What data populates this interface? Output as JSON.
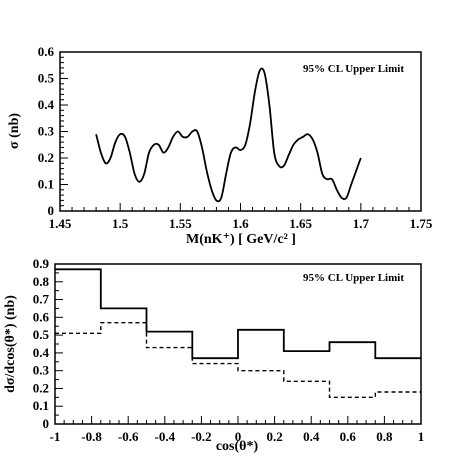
{
  "chart_data": [
    {
      "type": "line",
      "annotation": "95% CL Upper Limit",
      "xlabel": "M(nK⁺) [ GeV/c² ]",
      "ylabel": "σ (nb)",
      "xlim": [
        1.45,
        1.75
      ],
      "ylim": [
        0,
        0.6
      ],
      "xticks": [
        "1.45",
        "1.5",
        "1.55",
        "1.6",
        "1.65",
        "1.7",
        "1.75"
      ],
      "yticks": [
        "0",
        "0.1",
        "0.2",
        "0.3",
        "0.4",
        "0.5",
        "0.6"
      ],
      "x": [
        1.48,
        1.484,
        1.488,
        1.492,
        1.496,
        1.5,
        1.504,
        1.508,
        1.512,
        1.516,
        1.52,
        1.524,
        1.528,
        1.532,
        1.536,
        1.54,
        1.544,
        1.548,
        1.552,
        1.556,
        1.56,
        1.564,
        1.568,
        1.572,
        1.576,
        1.58,
        1.584,
        1.588,
        1.592,
        1.596,
        1.6,
        1.604,
        1.608,
        1.612,
        1.616,
        1.62,
        1.624,
        1.628,
        1.632,
        1.636,
        1.64,
        1.644,
        1.648,
        1.652,
        1.656,
        1.66,
        1.664,
        1.668,
        1.672,
        1.676,
        1.68,
        1.684,
        1.688,
        1.692,
        1.696,
        1.7
      ],
      "y": [
        0.29,
        0.22,
        0.18,
        0.2,
        0.26,
        0.29,
        0.28,
        0.22,
        0.14,
        0.11,
        0.14,
        0.22,
        0.25,
        0.25,
        0.22,
        0.24,
        0.28,
        0.3,
        0.28,
        0.28,
        0.3,
        0.3,
        0.24,
        0.15,
        0.08,
        0.04,
        0.05,
        0.14,
        0.22,
        0.24,
        0.23,
        0.25,
        0.33,
        0.45,
        0.53,
        0.52,
        0.4,
        0.22,
        0.17,
        0.17,
        0.21,
        0.25,
        0.27,
        0.28,
        0.29,
        0.27,
        0.22,
        0.14,
        0.12,
        0.12,
        0.08,
        0.05,
        0.05,
        0.1,
        0.15,
        0.2
      ]
    },
    {
      "type": "line",
      "annotation": "95% CL Upper Limit",
      "xlabel": "cos(θ*)",
      "ylabel": "dσ/dcos(θ*) (nb)",
      "xlim": [
        -1,
        1
      ],
      "ylim": [
        0,
        0.9
      ],
      "xticks": [
        "-1",
        "-0.8",
        "-0.6",
        "-0.4",
        "-0.2",
        "0",
        "0.2",
        "0.4",
        "0.6",
        "0.8",
        "1"
      ],
      "yticks": [
        "0",
        "0.1",
        "0.2",
        "0.3",
        "0.4",
        "0.5",
        "0.6",
        "0.7",
        "0.8",
        "0.9"
      ],
      "bin_edges": [
        -1,
        -0.75,
        -0.5,
        -0.25,
        0,
        0.25,
        0.5,
        0.75,
        1
      ],
      "series": [
        {
          "values": [
            0.87,
            0.65,
            0.52,
            0.37,
            0.53,
            0.41,
            0.46,
            0.37
          ],
          "style": "solid"
        },
        {
          "values": [
            0.51,
            0.57,
            0.43,
            0.34,
            0.3,
            0.24,
            0.15,
            0.18
          ],
          "style": "dashed"
        }
      ]
    }
  ]
}
